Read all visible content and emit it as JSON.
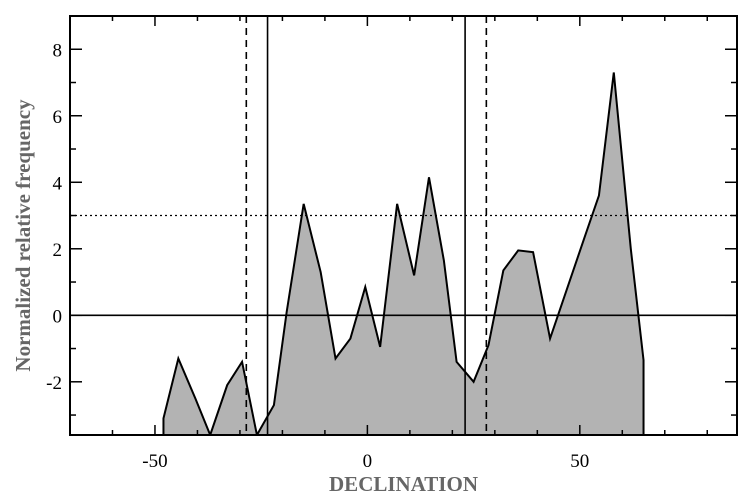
{
  "chart_data": {
    "type": "area",
    "xlabel": "DECLINATION",
    "ylabel": "Normalized relative frequency",
    "xlim": [
      -70,
      87
    ],
    "ylim": [
      -3.6,
      9
    ],
    "xticks": [
      -50,
      0,
      50
    ],
    "xtick_labels": [
      "-50",
      "0",
      "50"
    ],
    "yticks": [
      -2,
      0,
      2,
      4,
      6,
      8
    ],
    "ytick_labels": [
      "-2",
      "0",
      "2",
      "4",
      "6",
      "8"
    ],
    "fill_color": "#b3b3b3",
    "series": [
      {
        "x": [
          -48,
          -44.5,
          -40.5,
          -37,
          -33,
          -29.5,
          -26,
          -22,
          -19,
          -15,
          -11,
          -7.5,
          -4,
          -0.5,
          3,
          7,
          11,
          14.5,
          18,
          21,
          25,
          28.5,
          32,
          35.5,
          39,
          43,
          47,
          51,
          54.5,
          58,
          62,
          65
        ],
        "y": [
          -3.1,
          -1.3,
          -2.5,
          -3.6,
          -2.1,
          -1.4,
          -3.6,
          -2.7,
          0.1,
          3.35,
          1.3,
          -1.3,
          -0.7,
          0.85,
          -0.95,
          3.35,
          1.2,
          4.15,
          1.65,
          -1.4,
          -2.0,
          -0.9,
          1.35,
          1.95,
          1.9,
          -0.7,
          0.8,
          2.3,
          3.6,
          7.3,
          2.0,
          -1.35
        ]
      }
    ],
    "reference_lines": [
      {
        "axis": "y",
        "value": 0,
        "style": "solid"
      },
      {
        "axis": "y",
        "value": 3,
        "style": "dotted"
      },
      {
        "axis": "x",
        "value": -23.5,
        "style": "solid"
      },
      {
        "axis": "x",
        "value": 23,
        "style": "solid"
      },
      {
        "axis": "x",
        "value": -28.5,
        "style": "dashed"
      },
      {
        "axis": "x",
        "value": 28,
        "style": "dashed"
      }
    ]
  }
}
